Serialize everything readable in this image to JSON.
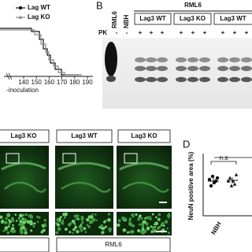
{
  "panel_a": {
    "legend": [
      "Lag WT",
      "Lag KO"
    ],
    "x_ticks": [
      "140",
      "150",
      "160",
      "170",
      "180",
      "190"
    ],
    "x_label": "-inoculation"
  },
  "panel_b": {
    "label": "B",
    "group": "RML6",
    "lanes": [
      "RML6",
      "NBH"
    ],
    "genotypes": [
      "Lag3 WT",
      "Lag3 KO",
      "Lag3 WT"
    ],
    "pk_label": "PK",
    "pk": [
      "-",
      "-",
      "+",
      "+",
      "+",
      "+",
      "+",
      "+",
      "+",
      "+",
      "+"
    ]
  },
  "panel_c": {
    "headers": [
      "Lag3 KO",
      "Lag3 WT",
      "Lag3 KO"
    ],
    "footer": "RML6"
  },
  "panel_d": {
    "label": "D",
    "y_label": "NeuN positive area (%)",
    "annotation": "n.s",
    "x_label": "NBH"
  }
}
